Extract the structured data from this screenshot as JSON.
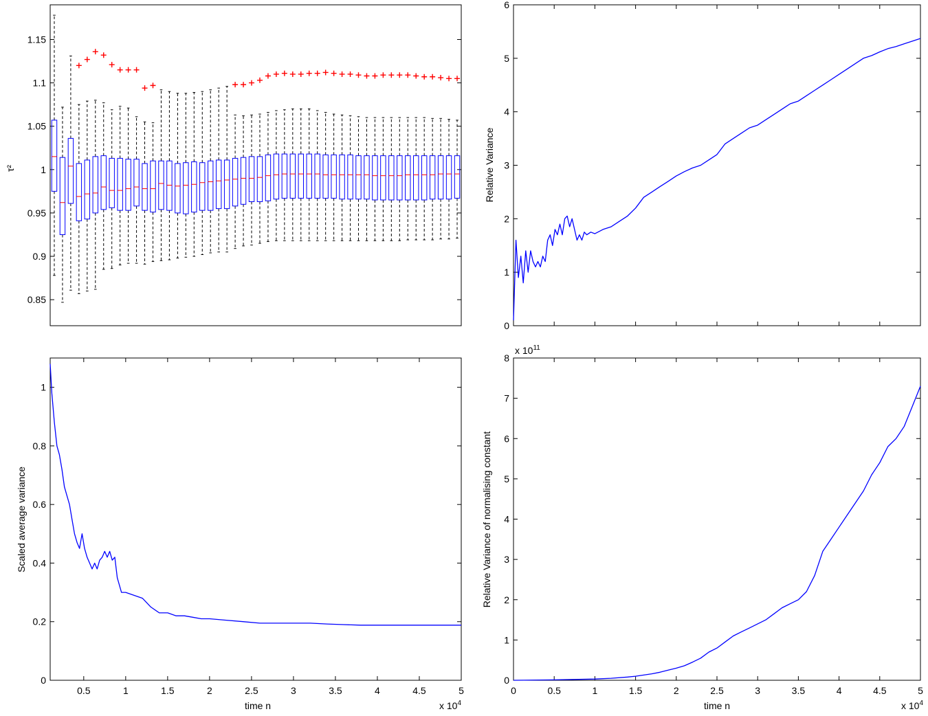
{
  "figure": {
    "background": "#ffffff",
    "line_color": "#0000ff",
    "median_color": "#ff0000",
    "outlier_color": "#ff0000",
    "whisker_color": "#000000"
  },
  "chart_data": [
    {
      "id": "boxplot",
      "type": "box",
      "title": "",
      "xlabel": "",
      "ylabel": "τ²",
      "ylim": [
        0.82,
        1.19
      ],
      "yticks": [
        "0.85",
        "0.9",
        "0.95",
        "1",
        "1.05",
        "1.1",
        "1.15"
      ],
      "xticks": [],
      "boxes": [
        {
          "median": 1.015,
          "q1": 0.975,
          "q3": 1.057,
          "wlo": 0.878,
          "whi": 1.178,
          "outliers": []
        },
        {
          "median": 0.962,
          "q1": 0.925,
          "q3": 1.014,
          "wlo": 0.847,
          "whi": 1.072,
          "outliers": []
        },
        {
          "median": 1.004,
          "q1": 0.961,
          "q3": 1.036,
          "wlo": 0.861,
          "whi": 1.131,
          "outliers": []
        },
        {
          "median": 0.969,
          "q1": 0.941,
          "q3": 1.007,
          "wlo": 0.857,
          "whi": 1.075,
          "outliers": [
            1.12
          ]
        },
        {
          "median": 0.972,
          "q1": 0.943,
          "q3": 1.011,
          "wlo": 0.86,
          "whi": 1.079,
          "outliers": [
            1.127
          ]
        },
        {
          "median": 0.973,
          "q1": 0.95,
          "q3": 1.015,
          "wlo": 0.862,
          "whi": 1.08,
          "outliers": [
            1.136
          ]
        },
        {
          "median": 0.98,
          "q1": 0.954,
          "q3": 1.016,
          "wlo": 0.885,
          "whi": 1.077,
          "outliers": [
            1.132
          ]
        },
        {
          "median": 0.976,
          "q1": 0.956,
          "q3": 1.013,
          "wlo": 0.886,
          "whi": 1.069,
          "outliers": [
            1.121
          ]
        },
        {
          "median": 0.976,
          "q1": 0.953,
          "q3": 1.013,
          "wlo": 0.89,
          "whi": 1.073,
          "outliers": [
            1.115
          ]
        },
        {
          "median": 0.978,
          "q1": 0.953,
          "q3": 1.012,
          "wlo": 0.892,
          "whi": 1.071,
          "outliers": [
            1.115
          ]
        },
        {
          "median": 0.98,
          "q1": 0.958,
          "q3": 1.012,
          "wlo": 0.892,
          "whi": 1.061,
          "outliers": [
            1.115
          ]
        },
        {
          "median": 0.978,
          "q1": 0.953,
          "q3": 1.007,
          "wlo": 0.891,
          "whi": 1.055,
          "outliers": [
            1.094
          ]
        },
        {
          "median": 0.978,
          "q1": 0.951,
          "q3": 1.01,
          "wlo": 0.894,
          "whi": 1.054,
          "outliers": [
            1.097
          ]
        },
        {
          "median": 0.984,
          "q1": 0.954,
          "q3": 1.01,
          "wlo": 0.895,
          "whi": 1.092,
          "outliers": []
        },
        {
          "median": 0.982,
          "q1": 0.953,
          "q3": 1.01,
          "wlo": 0.896,
          "whi": 1.09,
          "outliers": []
        },
        {
          "median": 0.981,
          "q1": 0.95,
          "q3": 1.007,
          "wlo": 0.898,
          "whi": 1.088,
          "outliers": []
        },
        {
          "median": 0.982,
          "q1": 0.949,
          "q3": 1.008,
          "wlo": 0.899,
          "whi": 1.088,
          "outliers": []
        },
        {
          "median": 0.983,
          "q1": 0.951,
          "q3": 1.009,
          "wlo": 0.9,
          "whi": 1.089,
          "outliers": []
        },
        {
          "median": 0.985,
          "q1": 0.953,
          "q3": 1.008,
          "wlo": 0.902,
          "whi": 1.09,
          "outliers": []
        },
        {
          "median": 0.986,
          "q1": 0.953,
          "q3": 1.01,
          "wlo": 0.904,
          "whi": 1.092,
          "outliers": []
        },
        {
          "median": 0.987,
          "q1": 0.955,
          "q3": 1.011,
          "wlo": 0.905,
          "whi": 1.094,
          "outliers": []
        },
        {
          "median": 0.988,
          "q1": 0.955,
          "q3": 1.011,
          "wlo": 0.905,
          "whi": 1.096,
          "outliers": []
        },
        {
          "median": 0.989,
          "q1": 0.958,
          "q3": 1.013,
          "wlo": 0.909,
          "whi": 1.063,
          "outliers": [
            1.098
          ]
        },
        {
          "median": 0.99,
          "q1": 0.96,
          "q3": 1.014,
          "wlo": 0.912,
          "whi": 1.062,
          "outliers": [
            1.098
          ]
        },
        {
          "median": 0.99,
          "q1": 0.963,
          "q3": 1.015,
          "wlo": 0.913,
          "whi": 1.063,
          "outliers": [
            1.1
          ]
        },
        {
          "median": 0.991,
          "q1": 0.963,
          "q3": 1.015,
          "wlo": 0.915,
          "whi": 1.064,
          "outliers": [
            1.103
          ]
        },
        {
          "median": 0.993,
          "q1": 0.964,
          "q3": 1.017,
          "wlo": 0.917,
          "whi": 1.066,
          "outliers": [
            1.108
          ]
        },
        {
          "median": 0.994,
          "q1": 0.966,
          "q3": 1.018,
          "wlo": 0.918,
          "whi": 1.068,
          "outliers": [
            1.11
          ]
        },
        {
          "median": 0.995,
          "q1": 0.967,
          "q3": 1.018,
          "wlo": 0.918,
          "whi": 1.069,
          "outliers": [
            1.111
          ]
        },
        {
          "median": 0.995,
          "q1": 0.967,
          "q3": 1.018,
          "wlo": 0.918,
          "whi": 1.07,
          "outliers": [
            1.11
          ]
        },
        {
          "median": 0.995,
          "q1": 0.967,
          "q3": 1.018,
          "wlo": 0.918,
          "whi": 1.07,
          "outliers": [
            1.11
          ]
        },
        {
          "median": 0.995,
          "q1": 0.967,
          "q3": 1.018,
          "wlo": 0.918,
          "whi": 1.07,
          "outliers": [
            1.111
          ]
        },
        {
          "median": 0.995,
          "q1": 0.967,
          "q3": 1.018,
          "wlo": 0.918,
          "whi": 1.068,
          "outliers": [
            1.111
          ]
        },
        {
          "median": 0.994,
          "q1": 0.967,
          "q3": 1.017,
          "wlo": 0.918,
          "whi": 1.066,
          "outliers": [
            1.112
          ]
        },
        {
          "median": 0.994,
          "q1": 0.967,
          "q3": 1.017,
          "wlo": 0.918,
          "whi": 1.064,
          "outliers": [
            1.111
          ]
        },
        {
          "median": 0.994,
          "q1": 0.966,
          "q3": 1.017,
          "wlo": 0.918,
          "whi": 1.063,
          "outliers": [
            1.11
          ]
        },
        {
          "median": 0.994,
          "q1": 0.966,
          "q3": 1.017,
          "wlo": 0.918,
          "whi": 1.062,
          "outliers": [
            1.11
          ]
        },
        {
          "median": 0.994,
          "q1": 0.966,
          "q3": 1.016,
          "wlo": 0.918,
          "whi": 1.061,
          "outliers": [
            1.109
          ]
        },
        {
          "median": 0.994,
          "q1": 0.966,
          "q3": 1.016,
          "wlo": 0.918,
          "whi": 1.06,
          "outliers": [
            1.108
          ]
        },
        {
          "median": 0.993,
          "q1": 0.965,
          "q3": 1.016,
          "wlo": 0.918,
          "whi": 1.06,
          "outliers": [
            1.108
          ]
        },
        {
          "median": 0.993,
          "q1": 0.965,
          "q3": 1.016,
          "wlo": 0.918,
          "whi": 1.06,
          "outliers": [
            1.109
          ]
        },
        {
          "median": 0.993,
          "q1": 0.965,
          "q3": 1.016,
          "wlo": 0.918,
          "whi": 1.06,
          "outliers": [
            1.109
          ]
        },
        {
          "median": 0.993,
          "q1": 0.965,
          "q3": 1.016,
          "wlo": 0.918,
          "whi": 1.06,
          "outliers": [
            1.109
          ]
        },
        {
          "median": 0.994,
          "q1": 0.965,
          "q3": 1.016,
          "wlo": 0.919,
          "whi": 1.06,
          "outliers": [
            1.109
          ]
        },
        {
          "median": 0.994,
          "q1": 0.965,
          "q3": 1.016,
          "wlo": 0.919,
          "whi": 1.06,
          "outliers": [
            1.108
          ]
        },
        {
          "median": 0.994,
          "q1": 0.965,
          "q3": 1.016,
          "wlo": 0.919,
          "whi": 1.06,
          "outliers": [
            1.107
          ]
        },
        {
          "median": 0.994,
          "q1": 0.966,
          "q3": 1.016,
          "wlo": 0.919,
          "whi": 1.059,
          "outliers": [
            1.107
          ]
        },
        {
          "median": 0.995,
          "q1": 0.966,
          "q3": 1.016,
          "wlo": 0.92,
          "whi": 1.059,
          "outliers": [
            1.106
          ]
        },
        {
          "median": 0.995,
          "q1": 0.966,
          "q3": 1.016,
          "wlo": 0.92,
          "whi": 1.058,
          "outliers": [
            1.105
          ]
        },
        {
          "median": 0.995,
          "q1": 0.967,
          "q3": 1.016,
          "wlo": 0.921,
          "whi": 1.057,
          "outliers": [
            1.105
          ]
        }
      ]
    },
    {
      "id": "relative-variance",
      "type": "line",
      "title": "",
      "xlabel": "",
      "ylabel": "Relative Variance",
      "xlim": [
        0,
        50000
      ],
      "ylim": [
        0,
        6
      ],
      "yticks": [
        "0",
        "1",
        "2",
        "3",
        "4",
        "5",
        "6"
      ],
      "series": [
        {
          "x": [
            0,
            300,
            600,
            900,
            1200,
            1500,
            1800,
            2100,
            2400,
            2700,
            3000,
            3300,
            3600,
            3900,
            4200,
            4500,
            4800,
            5100,
            5400,
            5700,
            6000,
            6300,
            6600,
            6900,
            7200,
            7500,
            7800,
            8100,
            8400,
            8700,
            9000,
            9500,
            10000,
            11000,
            12000,
            13000,
            14000,
            15000,
            16000,
            17000,
            18000,
            19000,
            20000,
            21000,
            22000,
            23000,
            24000,
            25000,
            26000,
            27000,
            28000,
            29000,
            30000,
            31000,
            32000,
            33000,
            34000,
            35000,
            36000,
            37000,
            38000,
            39000,
            40000,
            41000,
            42000,
            43000,
            44000,
            45000,
            46000,
            47000,
            48000,
            49000,
            50000
          ],
          "y": [
            0.1,
            1.6,
            0.9,
            1.3,
            0.8,
            1.4,
            1.0,
            1.4,
            1.2,
            1.1,
            1.2,
            1.1,
            1.3,
            1.2,
            1.6,
            1.7,
            1.5,
            1.8,
            1.7,
            1.9,
            1.7,
            2.0,
            2.05,
            1.85,
            2.0,
            1.8,
            1.6,
            1.7,
            1.6,
            1.75,
            1.7,
            1.75,
            1.72,
            1.8,
            1.85,
            1.95,
            2.05,
            2.2,
            2.4,
            2.5,
            2.6,
            2.7,
            2.8,
            2.88,
            2.95,
            3.0,
            3.1,
            3.2,
            3.4,
            3.5,
            3.6,
            3.7,
            3.75,
            3.85,
            3.95,
            4.05,
            4.15,
            4.2,
            4.3,
            4.4,
            4.5,
            4.6,
            4.7,
            4.8,
            4.9,
            5.0,
            5.05,
            5.12,
            5.18,
            5.22,
            5.27,
            5.32,
            5.37
          ]
        }
      ]
    },
    {
      "id": "scaled-average-variance",
      "type": "line",
      "title": "",
      "xlabel": "time n",
      "ylabel": "Scaled average variance",
      "x_multiplier": "x 10^4",
      "xlim": [
        1000,
        50000
      ],
      "ylim": [
        0,
        1.1
      ],
      "xticks": [
        "0.5",
        "1",
        "1.5",
        "2",
        "2.5",
        "3",
        "3.5",
        "4",
        "4.5",
        "5"
      ],
      "yticks": [
        "0",
        "0.2",
        "0.4",
        "0.6",
        "0.8",
        "1"
      ],
      "series": [
        {
          "x": [
            1000,
            1200,
            1500,
            1800,
            2100,
            2400,
            2700,
            3000,
            3300,
            3600,
            3900,
            4200,
            4500,
            4800,
            5100,
            5400,
            5700,
            6000,
            6300,
            6600,
            6900,
            7200,
            7500,
            7800,
            8100,
            8400,
            8700,
            9000,
            9500,
            10000,
            11000,
            12000,
            13000,
            14000,
            15000,
            16000,
            17000,
            18000,
            19000,
            20000,
            22000,
            24000,
            26000,
            28000,
            30000,
            32000,
            34000,
            36000,
            38000,
            40000,
            42000,
            44000,
            46000,
            48000,
            50000
          ],
          "y": [
            1.08,
            0.98,
            0.88,
            0.8,
            0.77,
            0.72,
            0.66,
            0.63,
            0.6,
            0.55,
            0.5,
            0.47,
            0.45,
            0.5,
            0.45,
            0.42,
            0.4,
            0.38,
            0.4,
            0.38,
            0.41,
            0.42,
            0.44,
            0.42,
            0.44,
            0.41,
            0.42,
            0.35,
            0.3,
            0.3,
            0.29,
            0.28,
            0.25,
            0.23,
            0.23,
            0.22,
            0.22,
            0.215,
            0.21,
            0.21,
            0.205,
            0.2,
            0.195,
            0.195,
            0.195,
            0.195,
            0.192,
            0.19,
            0.188,
            0.188,
            0.188,
            0.188,
            0.188,
            0.188,
            0.188
          ]
        }
      ]
    },
    {
      "id": "relative-variance-normalising-constant",
      "type": "line",
      "title": "",
      "xlabel": "time n",
      "ylabel": "Relative Variance of normalising constant",
      "x_multiplier": "x 10^4",
      "y_multiplier": "x 10^11",
      "xlim": [
        0,
        50000
      ],
      "ylim": [
        0,
        8
      ],
      "xticks": [
        "0",
        "0.5",
        "1",
        "1.5",
        "2",
        "2.5",
        "3",
        "3.5",
        "4",
        "4.5",
        "5"
      ],
      "yticks": [
        "0",
        "1",
        "2",
        "3",
        "4",
        "5",
        "6",
        "7",
        "8"
      ],
      "series": [
        {
          "x": [
            0,
            5000,
            10000,
            12000,
            14000,
            15000,
            16000,
            17000,
            18000,
            19000,
            20000,
            21000,
            22000,
            23000,
            24000,
            25000,
            26000,
            27000,
            28000,
            29000,
            30000,
            31000,
            32000,
            33000,
            34000,
            35000,
            36000,
            37000,
            38000,
            39000,
            40000,
            41000,
            42000,
            43000,
            44000,
            45000,
            46000,
            47000,
            48000,
            49000,
            50000
          ],
          "y": [
            0,
            0.01,
            0.03,
            0.05,
            0.08,
            0.1,
            0.13,
            0.16,
            0.2,
            0.25,
            0.3,
            0.36,
            0.45,
            0.55,
            0.7,
            0.8,
            0.95,
            1.1,
            1.2,
            1.3,
            1.4,
            1.5,
            1.65,
            1.8,
            1.9,
            2.0,
            2.2,
            2.6,
            3.2,
            3.5,
            3.8,
            4.1,
            4.4,
            4.7,
            5.1,
            5.4,
            5.8,
            6.0,
            6.3,
            6.8,
            7.3
          ]
        }
      ]
    }
  ]
}
